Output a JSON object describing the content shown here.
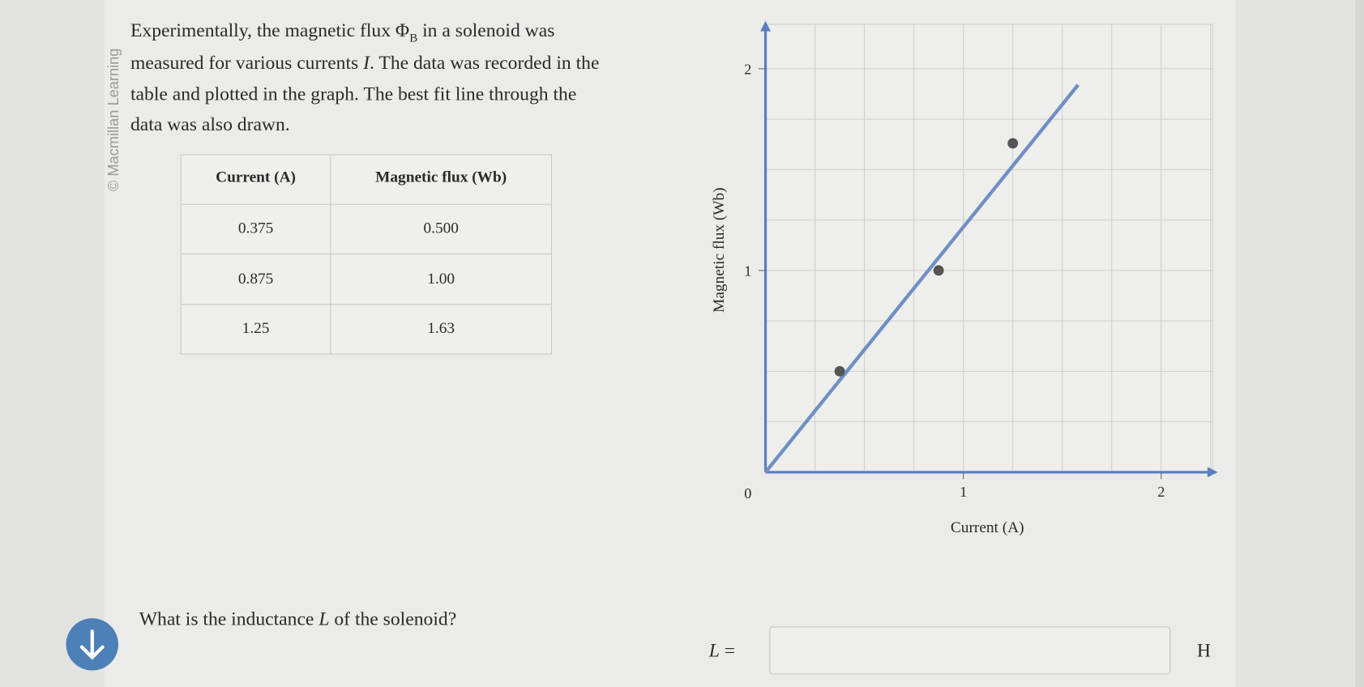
{
  "credit": "© Macmillan Learning",
  "intro": [
    "Experimentally, the magnetic flux Φ",
    "B",
    " in a solenoid was",
    "measured for various currents ",
    "I",
    ". The data was recorded in the",
    "table and plotted in the graph. The best fit line through the",
    "data was also drawn."
  ],
  "table": {
    "header": [
      "Current (A)",
      "Magnetic flux (Wb)"
    ],
    "rows": [
      [
        "0.375",
        "0.500"
      ],
      [
        "0.875",
        "1.00"
      ],
      [
        "1.25",
        "1.63"
      ]
    ]
  },
  "chart_data": {
    "type": "scatter",
    "x_label": "Current (A)",
    "y_label": "Magnetic flux (Wb)",
    "origin_label": "0",
    "points": {
      "x": [
        0.375,
        0.875,
        1.25
      ],
      "y": [
        0.5,
        1.0,
        1.63
      ],
      "color": "#555555"
    },
    "fit_line": {
      "x": [
        0,
        1.58
      ],
      "y": [
        0,
        1.92
      ],
      "color": "#6f8fc4"
    },
    "xlim": [
      0,
      2.26
    ],
    "ylim": [
      0,
      2.22
    ],
    "xticks": [
      1,
      2
    ],
    "yticks": [
      1,
      2
    ],
    "grid": true,
    "xgrid": [
      0.25,
      0.5,
      0.75,
      1,
      1.25,
      1.5,
      1.75,
      2,
      2.25
    ],
    "ygrid": [
      0.25,
      0.5,
      0.75,
      1,
      1.25,
      1.5,
      1.75,
      2
    ]
  },
  "question": [
    "What is the inductance ",
    "L",
    " of the solenoid?"
  ],
  "answer": {
    "label": [
      "L",
      " ="
    ],
    "unit": "H"
  }
}
